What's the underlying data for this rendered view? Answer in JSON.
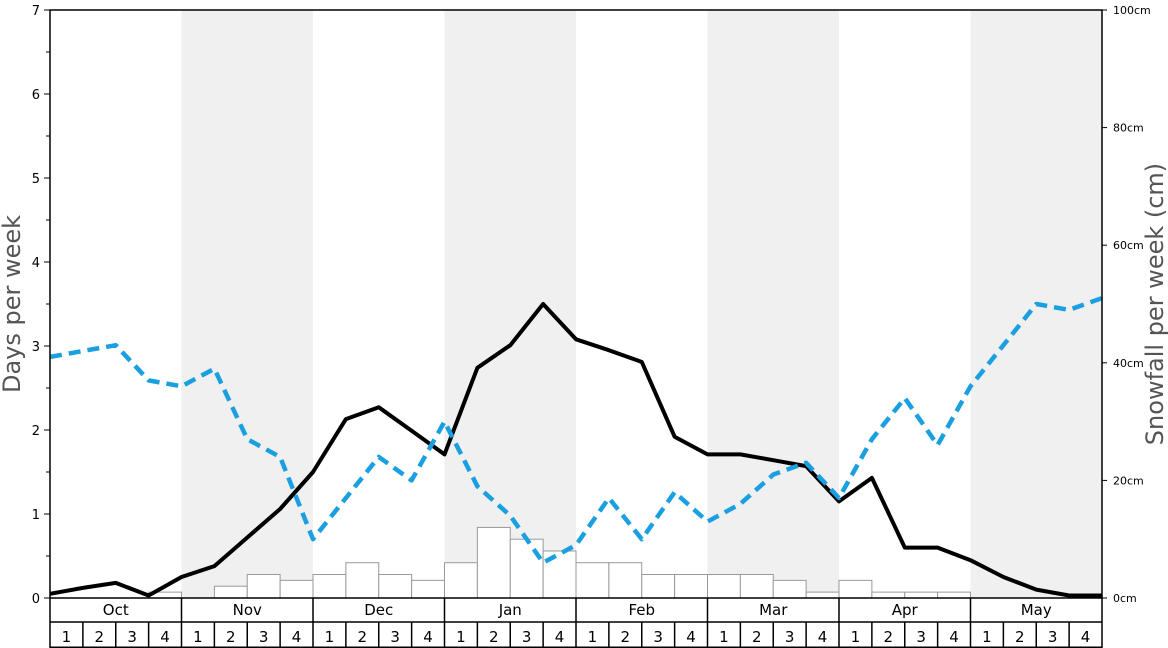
{
  "chart_data": {
    "type": "bar+line",
    "title": "",
    "ylabel_left": "Days per week",
    "ylabel_right": "Snowfall per week (cm)",
    "ylim_left": [
      0,
      7
    ],
    "ylim_right": [
      0,
      100
    ],
    "yticks_left": [
      "0",
      "1",
      "2",
      "3",
      "4",
      "5",
      "6",
      "7"
    ],
    "yticks_right": [
      "0cm",
      "20cm",
      "40cm",
      "60cm",
      "80cm",
      "100cm"
    ],
    "yticks_right_values": [
      0,
      20,
      40,
      60,
      80,
      100
    ],
    "months": [
      "Oct",
      "Nov",
      "Dec",
      "Jan",
      "Feb",
      "Mar",
      "Apr",
      "May"
    ],
    "week_labels": [
      "1",
      "2",
      "3",
      "4"
    ],
    "shaded_months": [
      "Nov",
      "Jan",
      "Mar",
      "May"
    ],
    "grid": false,
    "legend": "none",
    "colors": {
      "snow_days_line": "#000000",
      "snowfall_line": "#1a9fe0",
      "bars_fill": "#ffffff",
      "bars_stroke": "#999999",
      "shade": "#f0f0f0"
    },
    "series": [
      {
        "axis": "right",
        "kind": "bar",
        "values": [
          0,
          0,
          0,
          1,
          0,
          2,
          4,
          3,
          4,
          6,
          4,
          3,
          6,
          12,
          10,
          8,
          6,
          6,
          4,
          4,
          4,
          4,
          3,
          1,
          3,
          1,
          1,
          1,
          0,
          0,
          0,
          0
        ]
      },
      {
        "axis": "left",
        "kind": "line",
        "style": "solid",
        "values": [
          0.05,
          0.12,
          0.18,
          0.03,
          0.25,
          0.38,
          0.72,
          1.06,
          1.5,
          2.13,
          2.27,
          1.99,
          1.71,
          2.74,
          3.01,
          3.5,
          3.08,
          2.95,
          2.81,
          1.92,
          1.71,
          1.71,
          1.64,
          1.57,
          1.15,
          1.43,
          0.6,
          0.6,
          0.45,
          0.25,
          0.1,
          0.03,
          0.03
        ]
      },
      {
        "axis": "right",
        "kind": "line",
        "style": "dashed",
        "values": [
          41,
          42,
          43,
          37,
          36,
          39,
          27,
          24,
          10,
          17,
          24,
          20,
          30,
          19,
          14,
          6,
          9,
          17,
          10,
          18,
          13,
          16,
          21,
          23,
          17,
          27,
          34,
          26,
          36,
          43,
          50,
          49,
          51
        ]
      }
    ]
  }
}
